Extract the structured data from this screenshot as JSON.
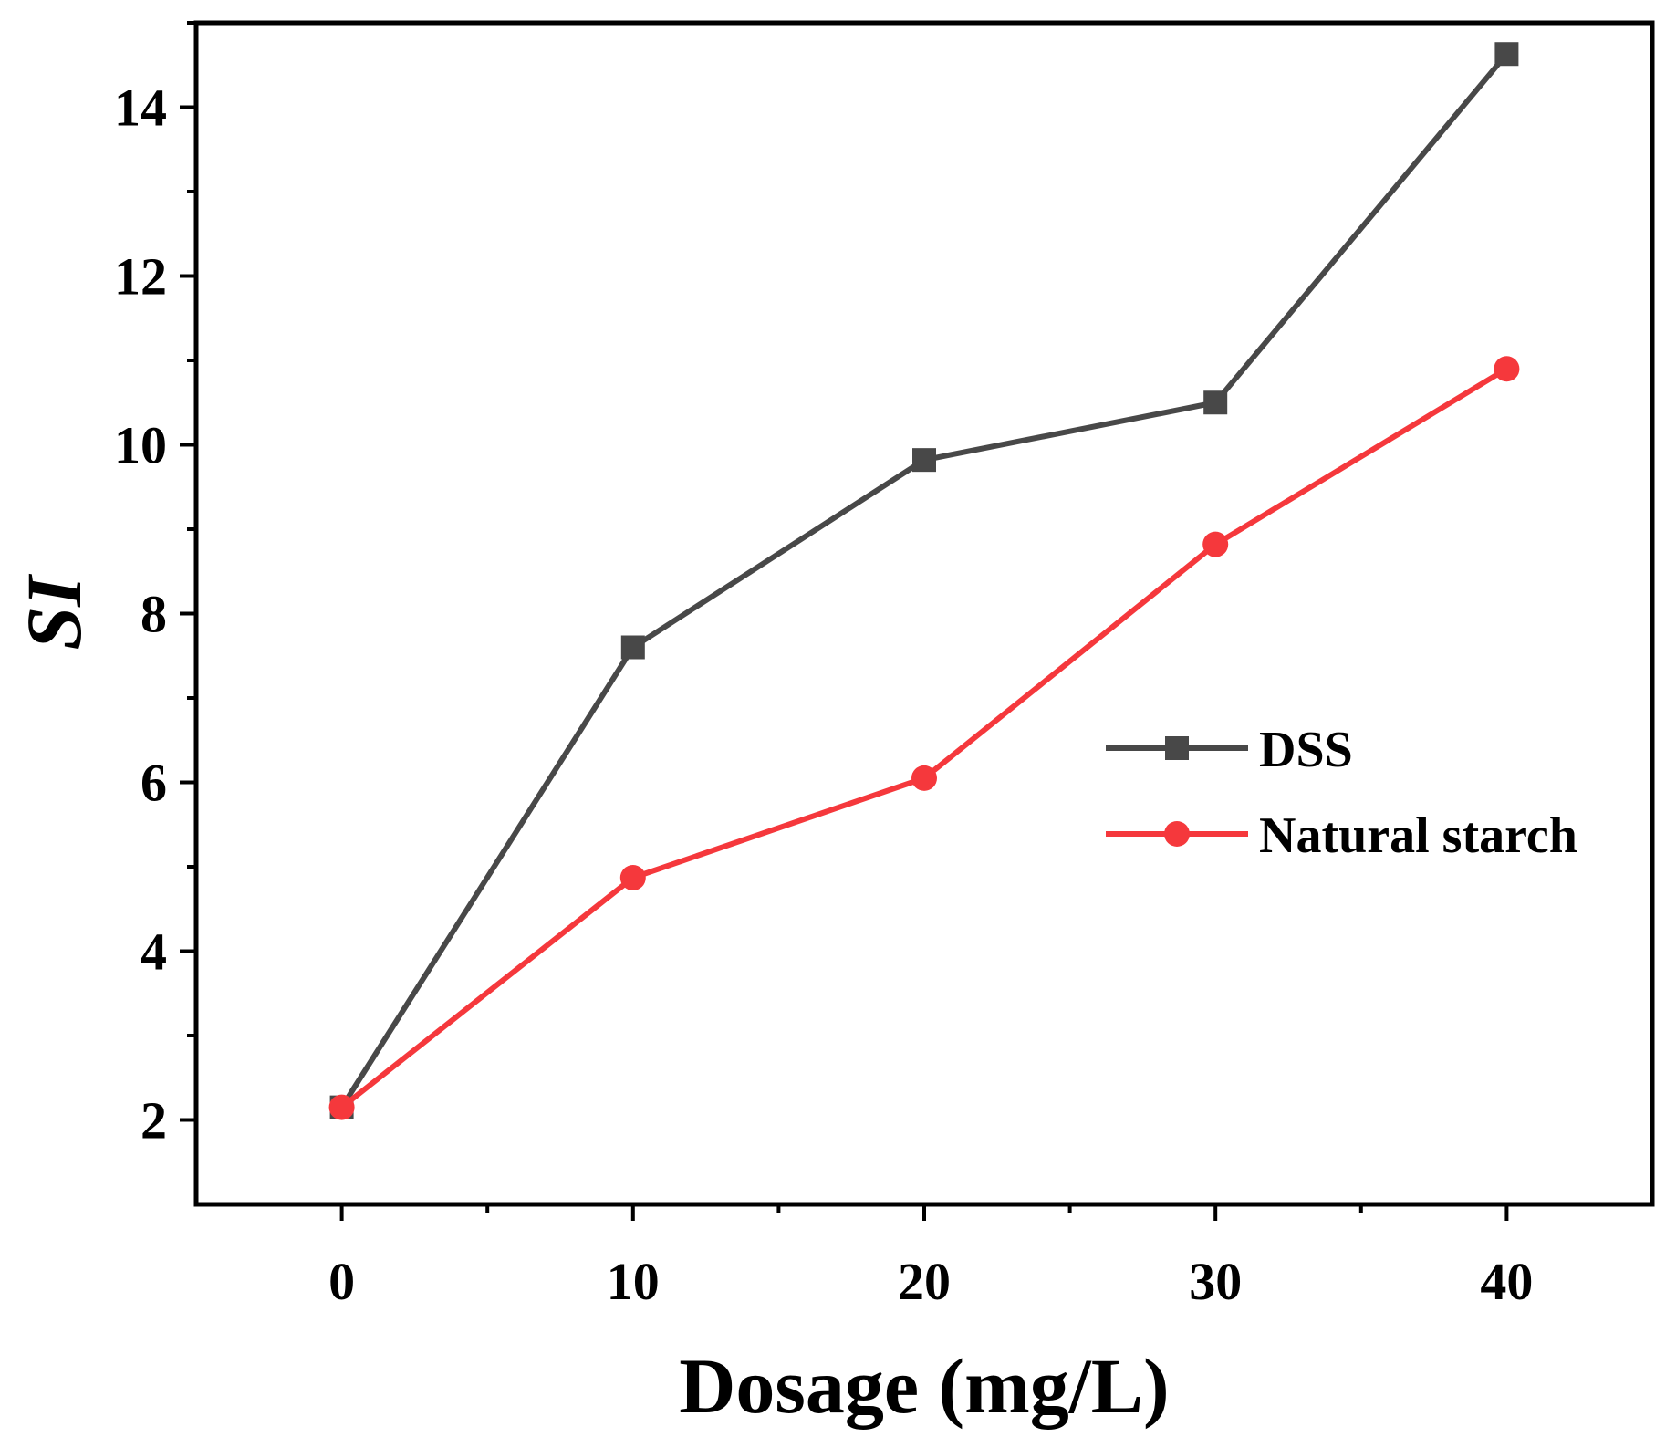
{
  "chart_data": {
    "type": "line",
    "title": "",
    "xlabel": "Dosage (mg/L)",
    "ylabel": "SI",
    "x": [
      0,
      10,
      20,
      30,
      40
    ],
    "xlim": [
      -5,
      45
    ],
    "ylim": [
      1,
      15
    ],
    "xticks": [
      0,
      10,
      20,
      30,
      40
    ],
    "yticks": [
      2,
      4,
      6,
      8,
      10,
      12,
      14
    ],
    "grid": false,
    "legend_position": "center-right",
    "series": [
      {
        "name": "DSS",
        "marker": "square",
        "color": "#484848",
        "values": [
          2.15,
          7.6,
          9.82,
          10.5,
          14.63
        ]
      },
      {
        "name": "Natural starch",
        "marker": "circle",
        "color": "#f5383c",
        "values": [
          2.15,
          4.87,
          6.05,
          8.82,
          10.9
        ]
      }
    ]
  }
}
